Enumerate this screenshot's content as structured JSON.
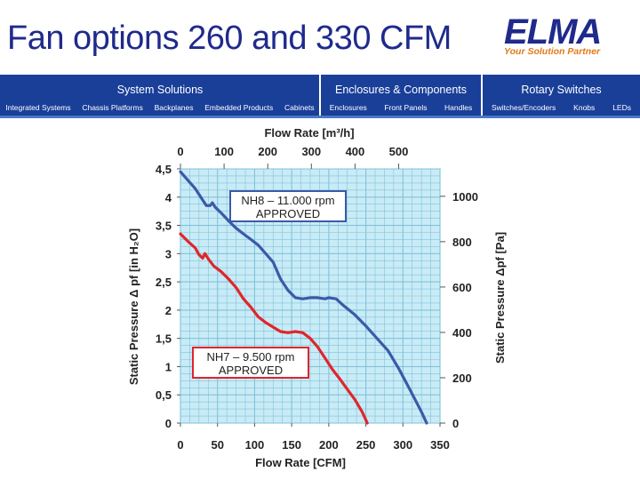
{
  "slide": {
    "title": "Fan options 260 and 330 CFM",
    "logo_word": "ELMA",
    "logo_tagline": "Your Solution Partner"
  },
  "nav": {
    "sections": [
      {
        "label": "System Solutions",
        "items": [
          "Integrated Systems",
          "Chassis Platforms",
          "Backplanes",
          "Embedded Products",
          "Cabinets"
        ]
      },
      {
        "label": "Enclosures & Components",
        "items": [
          "Enclosures",
          "Front Panels",
          "Handles"
        ]
      },
      {
        "label": "Rotary Switches",
        "items": [
          "Switches/Encoders",
          "Knobs",
          "LEDs"
        ]
      }
    ]
  },
  "chart_data": {
    "type": "line",
    "top_axis_title": "Flow Rate [m³/h]",
    "top_axis_ticks": [
      "0",
      "100",
      "200",
      "300",
      "400",
      "500"
    ],
    "xlabel": "Flow Rate [CFM]",
    "x_ticks": [
      "0",
      "50",
      "100",
      "150",
      "200",
      "250",
      "300",
      "350"
    ],
    "xlim": [
      0,
      350
    ],
    "ylabel_left": "Static Pressure Δ pf [in H₂O]",
    "y_ticks_left": [
      "0",
      "0,5",
      "1",
      "1,5",
      "2",
      "2,5",
      "3",
      "3,5",
      "4",
      "4,5"
    ],
    "ylim_left": [
      0,
      4.5
    ],
    "ylabel_right": "Static Pressure Δpf [Pa]",
    "y_ticks_right": [
      "0",
      "200",
      "400",
      "600",
      "800",
      "1000"
    ],
    "colors": {
      "nh8": "#3a5aa8",
      "nh7": "#e0262b",
      "plot_bg": "#c9ebf6",
      "grid": "#7fc3dc"
    },
    "series": [
      {
        "name": "NH8",
        "label_line1": "NH8 – 11.000 rpm",
        "label_line2": "APPROVED",
        "points": [
          [
            0,
            4.45
          ],
          [
            10,
            4.3
          ],
          [
            20,
            4.15
          ],
          [
            30,
            3.95
          ],
          [
            35,
            3.85
          ],
          [
            40,
            3.85
          ],
          [
            43,
            3.9
          ],
          [
            47,
            3.82
          ],
          [
            55,
            3.72
          ],
          [
            65,
            3.58
          ],
          [
            75,
            3.45
          ],
          [
            85,
            3.35
          ],
          [
            95,
            3.25
          ],
          [
            105,
            3.15
          ],
          [
            115,
            3.0
          ],
          [
            125,
            2.85
          ],
          [
            135,
            2.55
          ],
          [
            145,
            2.35
          ],
          [
            155,
            2.22
          ],
          [
            165,
            2.2
          ],
          [
            175,
            2.22
          ],
          [
            185,
            2.22
          ],
          [
            195,
            2.2
          ],
          [
            200,
            2.22
          ],
          [
            210,
            2.2
          ],
          [
            220,
            2.08
          ],
          [
            235,
            1.92
          ],
          [
            250,
            1.72
          ],
          [
            265,
            1.5
          ],
          [
            280,
            1.28
          ],
          [
            295,
            0.95
          ],
          [
            310,
            0.58
          ],
          [
            325,
            0.2
          ],
          [
            332,
            0.0
          ]
        ]
      },
      {
        "name": "NH7",
        "label_line1": "NH7 – 9.500 rpm",
        "label_line2": "APPROVED",
        "points": [
          [
            0,
            3.35
          ],
          [
            10,
            3.22
          ],
          [
            20,
            3.1
          ],
          [
            25,
            2.98
          ],
          [
            30,
            2.92
          ],
          [
            33,
            3.0
          ],
          [
            38,
            2.9
          ],
          [
            45,
            2.78
          ],
          [
            55,
            2.68
          ],
          [
            65,
            2.55
          ],
          [
            75,
            2.4
          ],
          [
            85,
            2.2
          ],
          [
            95,
            2.05
          ],
          [
            105,
            1.88
          ],
          [
            115,
            1.78
          ],
          [
            125,
            1.7
          ],
          [
            135,
            1.62
          ],
          [
            145,
            1.6
          ],
          [
            155,
            1.62
          ],
          [
            165,
            1.6
          ],
          [
            175,
            1.5
          ],
          [
            185,
            1.35
          ],
          [
            195,
            1.15
          ],
          [
            205,
            0.95
          ],
          [
            215,
            0.78
          ],
          [
            225,
            0.6
          ],
          [
            235,
            0.42
          ],
          [
            245,
            0.2
          ],
          [
            252,
            0.0
          ]
        ]
      }
    ]
  }
}
